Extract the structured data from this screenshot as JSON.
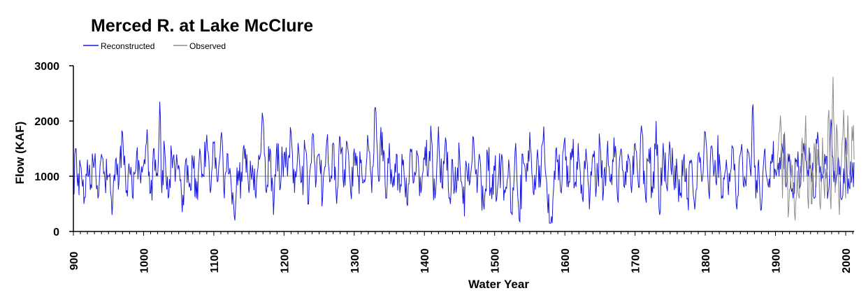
{
  "chart_data": {
    "type": "line",
    "title": "Merced R. at Lake McClure",
    "xlabel": "Water Year",
    "ylabel": "Flow (KAF)",
    "xlim": [
      900,
      2012
    ],
    "ylim": [
      0,
      3000
    ],
    "x_ticks": [
      900,
      1000,
      1100,
      1200,
      1300,
      1400,
      1500,
      1600,
      1700,
      1800,
      1900,
      2000
    ],
    "y_ticks": [
      0,
      1000,
      2000,
      3000
    ],
    "reference_line": 1000,
    "grid": false,
    "legend_position": "top-left",
    "series": [
      {
        "name": "Reconstructed",
        "color": "#1a1adb",
        "x_range": [
          900,
          2012
        ],
        "anchors": [
          [
            900,
            1000
          ],
          [
            903,
            1500
          ],
          [
            906,
            820
          ],
          [
            910,
            1200
          ],
          [
            915,
            500
          ],
          [
            920,
            1300
          ],
          [
            925,
            850
          ],
          [
            930,
            1250
          ],
          [
            935,
            600
          ],
          [
            940,
            1400
          ],
          [
            945,
            900
          ],
          [
            950,
            1000
          ],
          [
            955,
            300
          ],
          [
            960,
            1300
          ],
          [
            965,
            900
          ],
          [
            970,
            1800
          ],
          [
            975,
            700
          ],
          [
            980,
            1100
          ],
          [
            985,
            600
          ],
          [
            990,
            1400
          ],
          [
            995,
            1000
          ],
          [
            1000,
            1200
          ],
          [
            1005,
            1850
          ],
          [
            1010,
            700
          ],
          [
            1015,
            1500
          ],
          [
            1020,
            1000
          ],
          [
            1023,
            2350
          ],
          [
            1026,
            700
          ],
          [
            1030,
            1500
          ],
          [
            1035,
            600
          ],
          [
            1040,
            1400
          ],
          [
            1045,
            900
          ],
          [
            1050,
            1200
          ],
          [
            1055,
            350
          ],
          [
            1060,
            1300
          ],
          [
            1065,
            800
          ],
          [
            1070,
            1300
          ],
          [
            1075,
            600
          ],
          [
            1080,
            1500
          ],
          [
            1085,
            1000
          ],
          [
            1090,
            1750
          ],
          [
            1095,
            700
          ],
          [
            1100,
            1600
          ],
          [
            1105,
            900
          ],
          [
            1110,
            1700
          ],
          [
            1115,
            600
          ],
          [
            1120,
            1400
          ],
          [
            1125,
            800
          ],
          [
            1130,
            200
          ],
          [
            1135,
            1100
          ],
          [
            1140,
            900
          ],
          [
            1145,
            1500
          ],
          [
            1150,
            700
          ],
          [
            1155,
            1200
          ],
          [
            1160,
            600
          ],
          [
            1165,
            1300
          ],
          [
            1170,
            2050
          ],
          [
            1175,
            700
          ],
          [
            1180,
            1500
          ],
          [
            1185,
            300
          ],
          [
            1190,
            1600
          ],
          [
            1195,
            800
          ],
          [
            1200,
            1400
          ],
          [
            1205,
            1000
          ],
          [
            1210,
            1800
          ],
          [
            1215,
            700
          ],
          [
            1220,
            1600
          ],
          [
            1225,
            900
          ],
          [
            1230,
            1500
          ],
          [
            1235,
            500
          ],
          [
            1240,
            1700
          ],
          [
            1245,
            800
          ],
          [
            1250,
            1400
          ],
          [
            1255,
            600
          ],
          [
            1260,
            1500
          ],
          [
            1265,
            900
          ],
          [
            1270,
            1600
          ],
          [
            1275,
            500
          ],
          [
            1280,
            1700
          ],
          [
            1285,
            800
          ],
          [
            1290,
            1600
          ],
          [
            1295,
            700
          ],
          [
            1300,
            1500
          ],
          [
            1305,
            1000
          ],
          [
            1310,
            1300
          ],
          [
            1315,
            900
          ],
          [
            1320,
            1600
          ],
          [
            1325,
            700
          ],
          [
            1330,
            2250
          ],
          [
            1335,
            900
          ],
          [
            1340,
            1800
          ],
          [
            1345,
            600
          ],
          [
            1350,
            1600
          ],
          [
            1355,
            800
          ],
          [
            1360,
            1400
          ],
          [
            1365,
            700
          ],
          [
            1370,
            1300
          ],
          [
            1375,
            500
          ],
          [
            1380,
            1500
          ],
          [
            1385,
            900
          ],
          [
            1390,
            1400
          ],
          [
            1395,
            700
          ],
          [
            1400,
            1300
          ],
          [
            1405,
            1000
          ],
          [
            1410,
            1700
          ],
          [
            1415,
            600
          ],
          [
            1420,
            1900
          ],
          [
            1425,
            800
          ],
          [
            1430,
            1700
          ],
          [
            1435,
            600
          ],
          [
            1440,
            1300
          ],
          [
            1445,
            700
          ],
          [
            1450,
            1400
          ],
          [
            1455,
            500
          ],
          [
            1460,
            1200
          ],
          [
            1465,
            900
          ],
          [
            1470,
            1700
          ],
          [
            1475,
            700
          ],
          [
            1480,
            1200
          ],
          [
            1485,
            400
          ],
          [
            1490,
            1400
          ],
          [
            1495,
            800
          ],
          [
            1500,
            1100
          ],
          [
            1505,
            900
          ],
          [
            1510,
            1400
          ],
          [
            1515,
            700
          ],
          [
            1520,
            1300
          ],
          [
            1525,
            300
          ],
          [
            1530,
            1600
          ],
          [
            1535,
            200
          ],
          [
            1540,
            1400
          ],
          [
            1545,
            900
          ],
          [
            1550,
            1800
          ],
          [
            1555,
            700
          ],
          [
            1560,
            1300
          ],
          [
            1565,
            800
          ],
          [
            1570,
            1900
          ],
          [
            1575,
            600
          ],
          [
            1580,
            100
          ],
          [
            1585,
            1100
          ],
          [
            1590,
            1300
          ],
          [
            1595,
            700
          ],
          [
            1600,
            1700
          ],
          [
            1605,
            800
          ],
          [
            1610,
            1500
          ],
          [
            1615,
            900
          ],
          [
            1620,
            1300
          ],
          [
            1625,
            600
          ],
          [
            1630,
            1500
          ],
          [
            1635,
            400
          ],
          [
            1640,
            1400
          ],
          [
            1645,
            800
          ],
          [
            1650,
            1600
          ],
          [
            1655,
            700
          ],
          [
            1660,
            1400
          ],
          [
            1665,
            900
          ],
          [
            1670,
            1700
          ],
          [
            1675,
            600
          ],
          [
            1680,
            1500
          ],
          [
            1685,
            800
          ],
          [
            1690,
            1400
          ],
          [
            1695,
            700
          ],
          [
            1700,
            1600
          ],
          [
            1705,
            800
          ],
          [
            1710,
            1800
          ],
          [
            1715,
            600
          ],
          [
            1720,
            1500
          ],
          [
            1725,
            700
          ],
          [
            1730,
            2000
          ],
          [
            1735,
            300
          ],
          [
            1740,
            1600
          ],
          [
            1745,
            800
          ],
          [
            1750,
            1500
          ],
          [
            1755,
            900
          ],
          [
            1760,
            1100
          ],
          [
            1765,
            700
          ],
          [
            1770,
            1400
          ],
          [
            1775,
            600
          ],
          [
            1780,
            1300
          ],
          [
            1785,
            400
          ],
          [
            1790,
            1400
          ],
          [
            1795,
            900
          ],
          [
            1800,
            1800
          ],
          [
            1805,
            700
          ],
          [
            1810,
            1500
          ],
          [
            1815,
            900
          ],
          [
            1820,
            1400
          ],
          [
            1825,
            600
          ],
          [
            1830,
            1300
          ],
          [
            1835,
            900
          ],
          [
            1840,
            1500
          ],
          [
            1845,
            400
          ],
          [
            1850,
            1400
          ],
          [
            1855,
            800
          ],
          [
            1860,
            1500
          ],
          [
            1865,
            1000
          ],
          [
            1868,
            2300
          ],
          [
            1872,
            600
          ],
          [
            1876,
            1300
          ],
          [
            1880,
            400
          ],
          [
            1885,
            1500
          ],
          [
            1890,
            800
          ],
          [
            1895,
            1400
          ],
          [
            1900,
            1100
          ],
          [
            1905,
            1000
          ],
          [
            1910,
            1500
          ],
          [
            1915,
            800
          ],
          [
            1920,
            1400
          ],
          [
            1925,
            600
          ],
          [
            1930,
            1300
          ],
          [
            1935,
            800
          ],
          [
            1940,
            1600
          ],
          [
            1945,
            1000
          ],
          [
            1950,
            1200
          ],
          [
            1955,
            600
          ],
          [
            1960,
            1800
          ],
          [
            1965,
            900
          ],
          [
            1970,
            1400
          ],
          [
            1975,
            700
          ],
          [
            1980,
            1900
          ],
          [
            1985,
            800
          ],
          [
            1990,
            1300
          ],
          [
            1995,
            600
          ],
          [
            2000,
            1700
          ],
          [
            2005,
            800
          ],
          [
            2010,
            1250
          ],
          [
            2012,
            1250
          ]
        ]
      },
      {
        "name": "Observed",
        "color": "#8c8c8c",
        "x_range": [
          1901,
          2012
        ],
        "anchors": [
          [
            1901,
            1000
          ],
          [
            1904,
            1500
          ],
          [
            1907,
            2100
          ],
          [
            1910,
            600
          ],
          [
            1913,
            1800
          ],
          [
            1916,
            900
          ],
          [
            1919,
            400
          ],
          [
            1922,
            1300
          ],
          [
            1925,
            700
          ],
          [
            1928,
            200
          ],
          [
            1931,
            1100
          ],
          [
            1934,
            600
          ],
          [
            1937,
            1500
          ],
          [
            1940,
            900
          ],
          [
            1943,
            2100
          ],
          [
            1946,
            600
          ],
          [
            1949,
            1300
          ],
          [
            1952,
            500
          ],
          [
            1955,
            1600
          ],
          [
            1958,
            800
          ],
          [
            1961,
            1200
          ],
          [
            1964,
            400
          ],
          [
            1967,
            1700
          ],
          [
            1970,
            600
          ],
          [
            1973,
            1100
          ],
          [
            1976,
            2200
          ],
          [
            1979,
            400
          ],
          [
            1982,
            2800
          ],
          [
            1985,
            700
          ],
          [
            1988,
            1800
          ],
          [
            1991,
            300
          ],
          [
            1994,
            1300
          ],
          [
            1997,
            2200
          ],
          [
            2000,
            600
          ],
          [
            2003,
            2100
          ],
          [
            2006,
            1000
          ],
          [
            2009,
            1900
          ],
          [
            2012,
            1300
          ]
        ]
      }
    ]
  }
}
